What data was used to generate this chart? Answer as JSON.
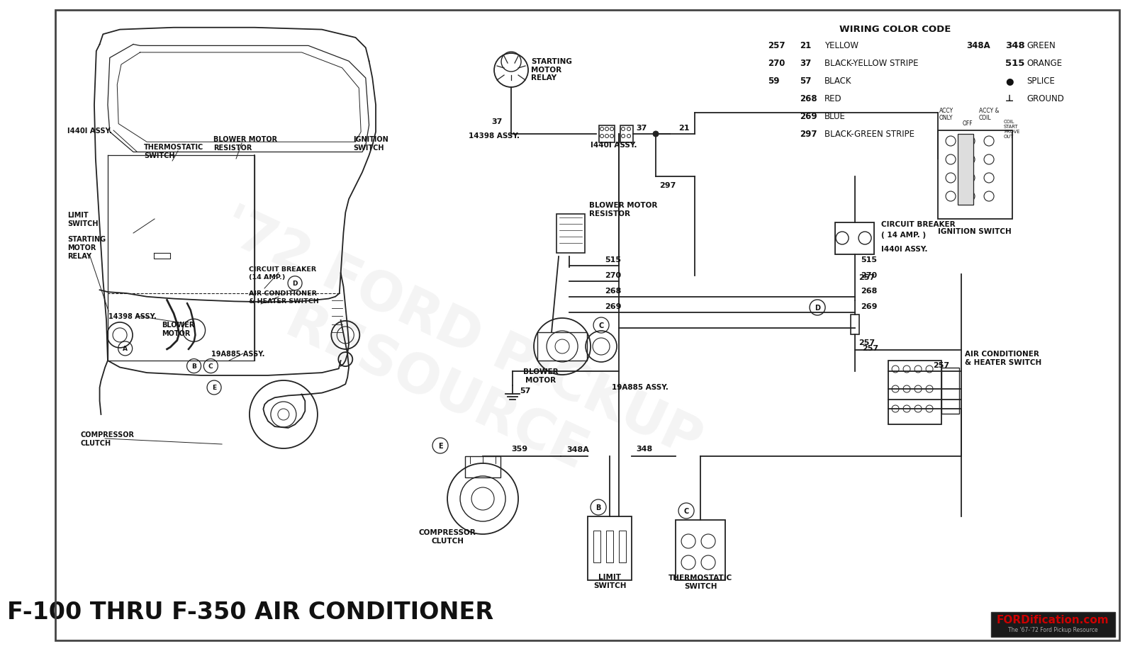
{
  "title": "F-100 THRU F-350 AIR CONDITIONER",
  "wiring_color_code_title": "WIRING COLOR CODE",
  "bg_color": "#ffffff",
  "border_color": "#555555",
  "wiring_codes_left": [
    {
      "num1": "257",
      "num2": "21",
      "label": "YELLOW"
    },
    {
      "num1": "270",
      "num2": "37",
      "label": "BLACK-YELLOW STRIPE"
    },
    {
      "num1": "59",
      "num2": "57",
      "label": "BLACK"
    },
    {
      "num1": "",
      "num2": "268",
      "label": "RED"
    },
    {
      "num1": "",
      "num2": "269",
      "label": "BLUE"
    },
    {
      "num1": "",
      "num2": "297",
      "label": "BLACK-GREEN STRIPE"
    }
  ],
  "wiring_codes_right": [
    {
      "num1": "348A",
      "num2": "348",
      "label": "GREEN"
    },
    {
      "num1": "",
      "num2": "515",
      "label": "ORANGE"
    },
    {
      "num1": "",
      "num2": "●",
      "label": "SPLICE"
    },
    {
      "num1": "",
      "num2": "⊥",
      "label": "GROUND"
    }
  ],
  "fordification_text": "FORDification.com",
  "fordification_sub": "The '67-'72 Ford Pickup Resource",
  "fordification_color": "#cc0000",
  "watermark_lines": [
    "'72 FORD PICKUP",
    "RESOURCE"
  ],
  "wm_color": "#dddddd"
}
